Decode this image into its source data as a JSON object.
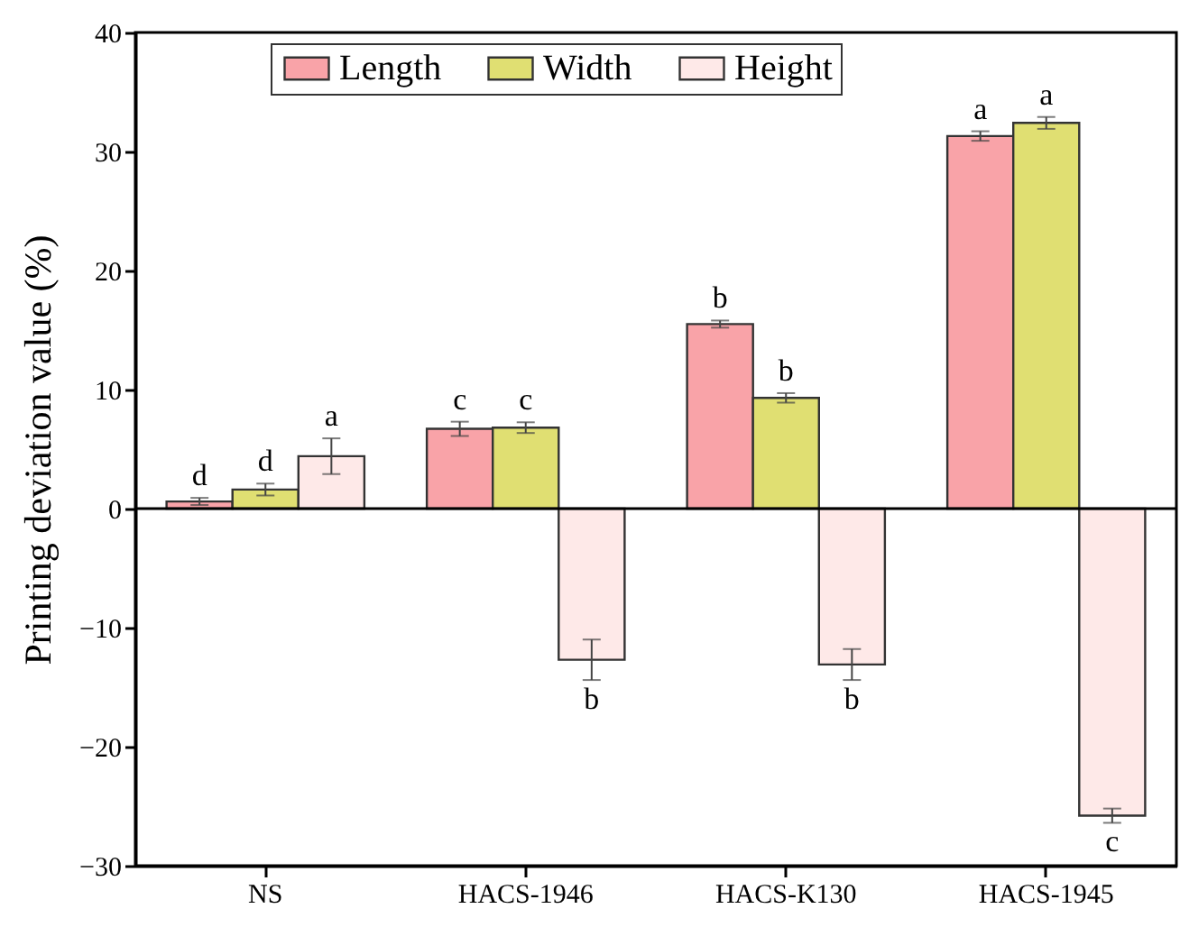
{
  "chart_data": {
    "type": "bar",
    "ylabel": "Printing deviation value (%)",
    "categories": [
      "NS",
      "HACS-1946",
      "HACS-K130",
      "HACS-1945"
    ],
    "series": [
      {
        "name": "Length",
        "color": "#f9a3a8",
        "values": [
          0.6,
          6.7,
          15.5,
          31.3
        ],
        "errors": [
          0.3,
          0.6,
          0.3,
          0.4
        ],
        "value_labels": [
          "d",
          "c",
          "b",
          "a"
        ]
      },
      {
        "name": "Width",
        "color": "#e0df72",
        "values": [
          1.6,
          6.8,
          9.3,
          32.4
        ],
        "errors": [
          0.5,
          0.45,
          0.4,
          0.5
        ],
        "value_labels": [
          "d",
          "c",
          "b",
          "a"
        ]
      },
      {
        "name": "Height",
        "color": "#fee9e8",
        "values": [
          4.4,
          -12.7,
          -13.1,
          -25.8
        ],
        "errors": [
          1.5,
          1.7,
          1.3,
          0.6
        ],
        "value_labels": [
          "a",
          "b",
          "b",
          "c"
        ]
      }
    ],
    "ylim": [
      -30,
      40
    ],
    "yticks": [
      -30,
      -20,
      -10,
      0,
      10,
      20,
      30,
      40
    ],
    "ref_lines": [
      {
        "axis": "y",
        "value": 0
      }
    ],
    "legend": "top",
    "grid": false
  }
}
